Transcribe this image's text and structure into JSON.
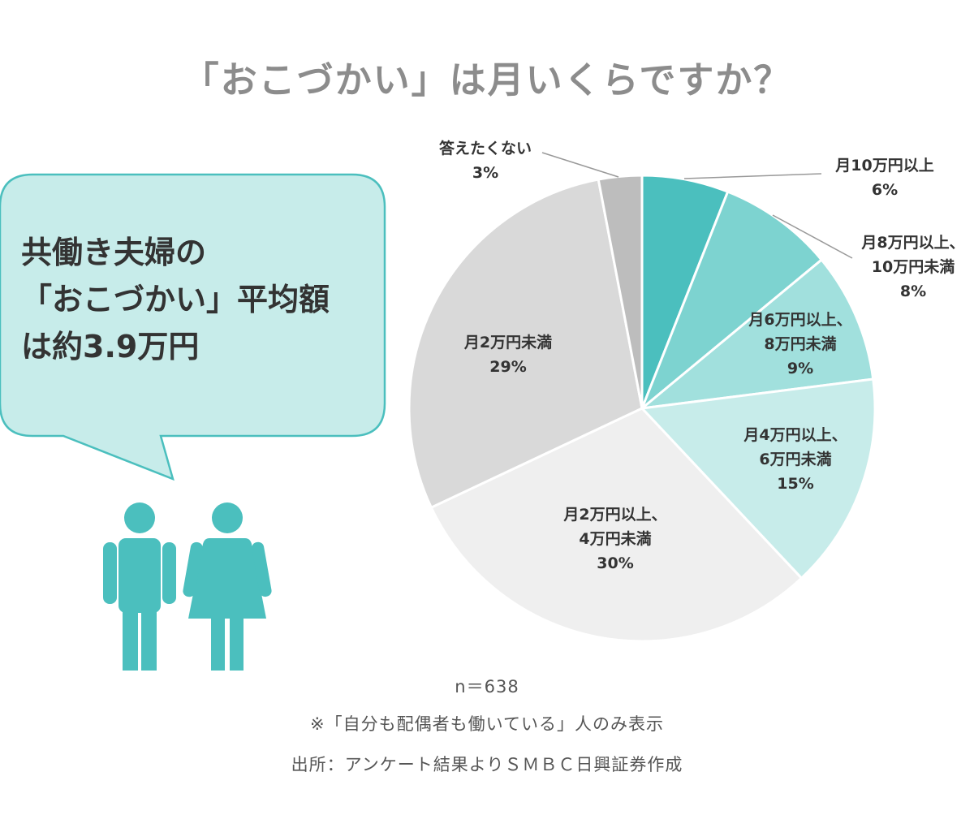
{
  "chart_data": {
    "type": "pie",
    "title": "「おこづかい」は月いくらですか？",
    "slices": [
      {
        "label_lines": [
          "月10万円以上"
        ],
        "percent_text": "6%",
        "value": 6,
        "color": "#4bbfbe"
      },
      {
        "label_lines": [
          "月8万円以上、",
          "10万円未満"
        ],
        "percent_text": "8%",
        "value": 8,
        "color": "#7dd3d0"
      },
      {
        "label_lines": [
          "月6万円以上、",
          "8万円未満"
        ],
        "percent_text": "9%",
        "value": 9,
        "color": "#a1e0dd"
      },
      {
        "label_lines": [
          "月4万円以上、",
          "6万円未満"
        ],
        "percent_text": "15%",
        "value": 15,
        "color": "#c7ecea"
      },
      {
        "label_lines": [
          "月2万円以上、",
          "4万円未満"
        ],
        "percent_text": "30%",
        "value": 30,
        "color": "#efefef"
      },
      {
        "label_lines": [
          "月2万円未満"
        ],
        "percent_text": "29%",
        "value": 29,
        "color": "#d9d9d9"
      },
      {
        "label_lines": [
          "答えたくない"
        ],
        "percent_text": "3%",
        "value": 3,
        "color": "#bdbdbd"
      }
    ],
    "sample_size": "n=638"
  },
  "callout": {
    "lines": [
      "共働き夫婦の",
      "「おこづかい」平均額",
      "は約3.9万円"
    ],
    "bubble_color": "#c7ecea",
    "border_color": "#4bbfbe"
  },
  "figures": {
    "icon_color": "#4bbfbe"
  },
  "footer": {
    "sample": "n＝638",
    "note": "※「自分も配偶者も働いている」人のみ表示",
    "source": "出所：アンケート結果よりＳＭＢＣ日興証券作成"
  }
}
